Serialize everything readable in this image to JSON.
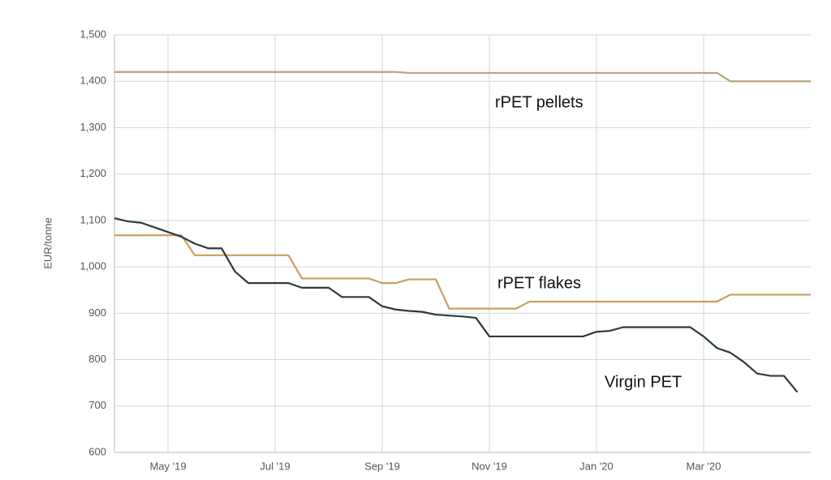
{
  "chart_data": {
    "type": "line",
    "y_label": "EUR/tonne",
    "categories": [
      null,
      null,
      null,
      null,
      "May '19",
      null,
      null,
      null,
      null,
      null,
      null,
      null,
      "Jul '19",
      null,
      null,
      null,
      null,
      null,
      null,
      null,
      "Sep '19",
      null,
      null,
      null,
      null,
      null,
      null,
      null,
      "Nov '19",
      null,
      null,
      null,
      null,
      null,
      null,
      null,
      "Jan '20",
      null,
      null,
      null,
      null,
      null,
      null,
      null,
      "Mar '20",
      null,
      null,
      null,
      null,
      null,
      null,
      null,
      null
    ],
    "series": [
      {
        "name": "rPET pellets",
        "color": "#b8a57c",
        "values": [
          1420,
          1420,
          1420,
          1420,
          1420,
          1420,
          1420,
          1420,
          1420,
          1420,
          1420,
          1420,
          1420,
          1420,
          1420,
          1420,
          1420,
          1420,
          1420,
          1420,
          1420,
          1420,
          1418,
          1418,
          1418,
          1418,
          1418,
          1418,
          1418,
          1418,
          1418,
          1418,
          1418,
          1418,
          1418,
          1418,
          1418,
          1418,
          1418,
          1418,
          1418,
          1418,
          1418,
          1418,
          1418,
          1418,
          1400,
          1400,
          1400,
          1400,
          1400,
          1400,
          1400
        ]
      },
      {
        "name": "rPET flakes",
        "color": "#c9a05a",
        "values": [
          1068,
          1068,
          1068,
          1068,
          1068,
          1068,
          1025,
          1025,
          1025,
          1025,
          1025,
          1025,
          1025,
          1025,
          975,
          975,
          975,
          975,
          975,
          975,
          965,
          965,
          973,
          973,
          973,
          910,
          910,
          910,
          910,
          910,
          910,
          925,
          925,
          925,
          925,
          925,
          925,
          925,
          925,
          925,
          925,
          925,
          925,
          925,
          925,
          925,
          940,
          940,
          940,
          940,
          940,
          940,
          940
        ]
      },
      {
        "name": "Virgin PET",
        "color": "#2c3b3b",
        "values": [
          1105,
          1098,
          1095,
          1085,
          1075,
          1065,
          1050,
          1040,
          1040,
          990,
          965,
          965,
          965,
          965,
          955,
          955,
          955,
          935,
          935,
          935,
          915,
          908,
          905,
          903,
          897,
          895,
          893,
          890,
          850,
          850,
          850,
          850,
          850,
          850,
          850,
          850,
          860,
          862,
          870,
          870,
          870,
          870,
          870,
          870,
          850,
          825,
          815,
          795,
          770,
          765,
          765,
          730,
          null
        ]
      }
    ],
    "ylim": [
      600,
      1500
    ],
    "yticks": [
      600,
      700,
      800,
      900,
      {
        "value": 1000,
        "label": "1,000"
      },
      {
        "value": 1100,
        "label": "1,100"
      },
      {
        "value": 1200,
        "label": "1,200"
      },
      {
        "value": 1300,
        "label": "1,300"
      },
      {
        "value": 1400,
        "label": "1,400"
      },
      {
        "value": 1500,
        "label": "1,500"
      }
    ],
    "grid": true
  }
}
